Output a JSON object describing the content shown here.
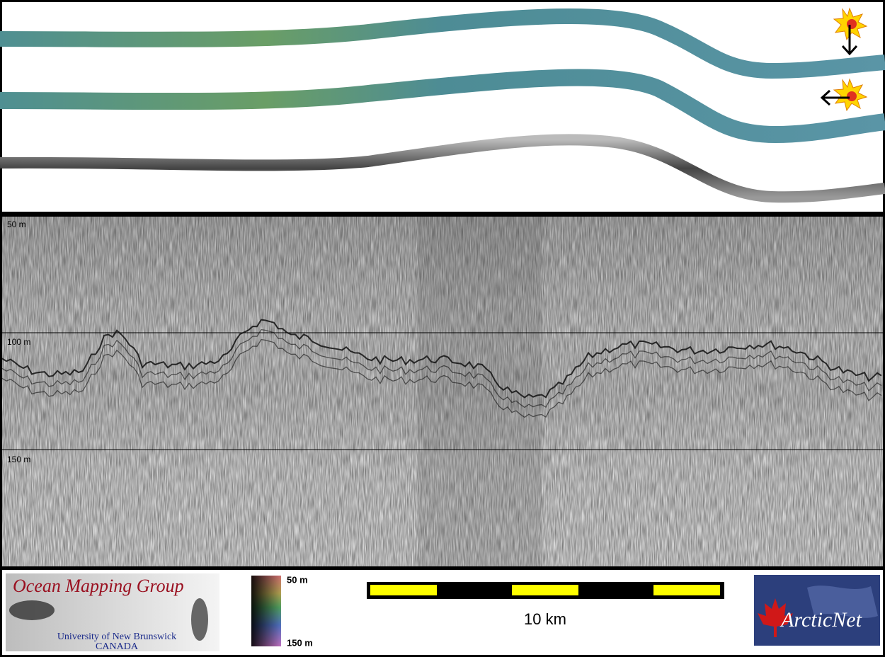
{
  "profile": {
    "depth_labels": [
      "50 m",
      "100 m",
      "150 m"
    ]
  },
  "footer": {
    "logo_left": {
      "title": "Ocean Mapping Group",
      "line1": "University of New Brunswick",
      "line2": "CANADA"
    },
    "color_scale": {
      "top": "50 m",
      "bottom": "150 m"
    },
    "scale_bar": {
      "label": "10 km"
    },
    "logo_right": {
      "title": "ArcticNet"
    }
  }
}
